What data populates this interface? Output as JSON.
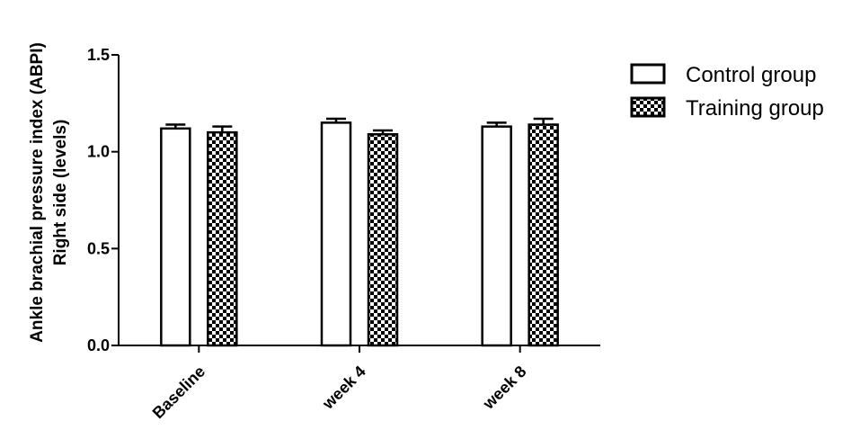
{
  "chart_data": {
    "type": "bar",
    "categories": [
      "Baseline",
      "week 4",
      "week 8"
    ],
    "series": [
      {
        "name": "Control group",
        "values": [
          1.12,
          1.15,
          1.13
        ],
        "error": [
          0.02,
          0.02,
          0.02
        ],
        "fill": "white"
      },
      {
        "name": "Training group",
        "values": [
          1.1,
          1.09,
          1.14
        ],
        "error": [
          0.03,
          0.02,
          0.03
        ],
        "fill": "checkerboard"
      }
    ],
    "ylabel_line1": "Ankle brachial pressure index (ABPI)",
    "ylabel_line2": "Right side (levels)",
    "ylim": [
      0,
      1.5
    ],
    "yticks": [
      "0.0",
      "0.5",
      "1.0",
      "1.5"
    ],
    "legend_position": "top-right",
    "grid": false,
    "colors": {
      "bar_stroke": "#000000",
      "bar_fill": "#ffffff",
      "pattern": "#000000"
    }
  }
}
